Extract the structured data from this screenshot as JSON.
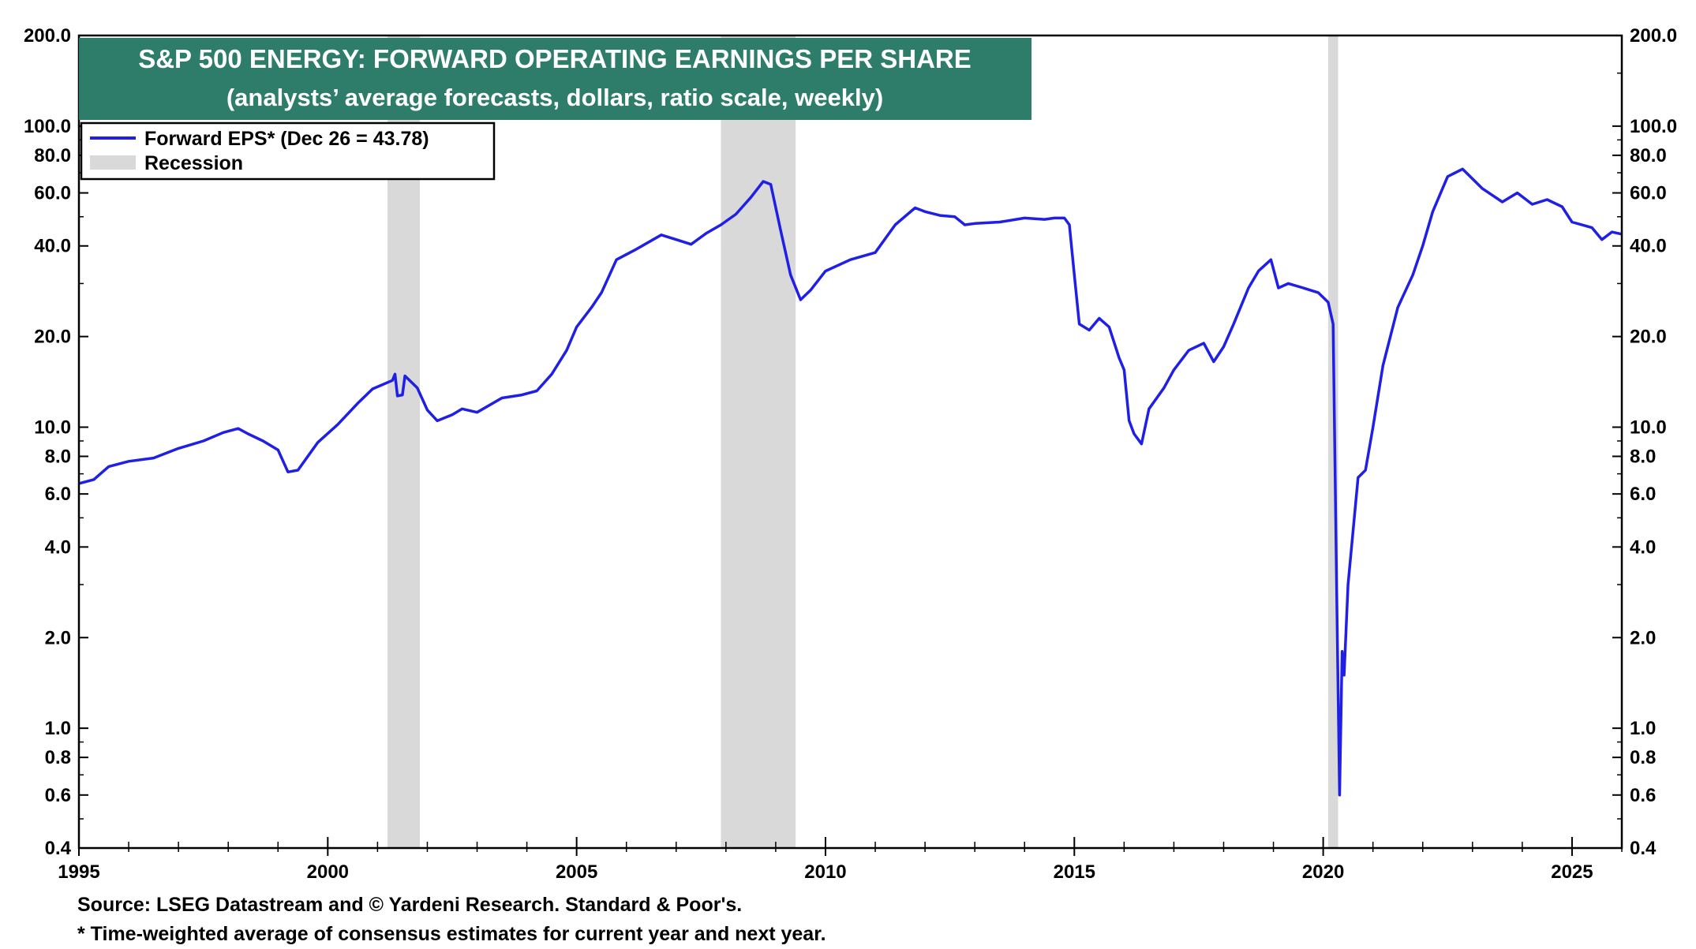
{
  "chart_data": {
    "type": "line",
    "title": "S&P 500 ENERGY: FORWARD OPERATING EARNINGS PER SHARE",
    "subtitle": "(analysts’ average forecasts, dollars, ratio scale, weekly)",
    "scale": "log",
    "xlim": [
      1995,
      2026
    ],
    "ylim": [
      0.4,
      200
    ],
    "x_ticks": [
      "1995",
      "2000",
      "2005",
      "2010",
      "2015",
      "2020",
      "2025"
    ],
    "y_ticks": [
      {
        "value": 200,
        "label": "200.0"
      },
      {
        "value": 100,
        "label": "100.0"
      },
      {
        "value": 80,
        "label": "80.0"
      },
      {
        "value": 60,
        "label": "60.0"
      },
      {
        "value": 40,
        "label": "40.0"
      },
      {
        "value": 20,
        "label": "20.0"
      },
      {
        "value": 10,
        "label": "10.0"
      },
      {
        "value": 8,
        "label": "8.0"
      },
      {
        "value": 6,
        "label": "6.0"
      },
      {
        "value": 4,
        "label": "4.0"
      },
      {
        "value": 2,
        "label": "2.0"
      },
      {
        "value": 1,
        "label": "1.0"
      },
      {
        "value": 0.8,
        "label": "0.8"
      },
      {
        "value": 0.6,
        "label": "0.6"
      },
      {
        "value": 0.4,
        "label": "0.4"
      }
    ],
    "legend": [
      {
        "label": "Forward EPS* (Dec 26 = 43.78)",
        "kind": "line",
        "color": "#1f1fe6"
      },
      {
        "label": "Recession",
        "kind": "band",
        "color": "#d9d9d9"
      }
    ],
    "recessions": [
      [
        2001.2,
        2001.85
      ],
      [
        2007.9,
        2009.4
      ],
      [
        2020.1,
        2020.3
      ]
    ],
    "series": [
      {
        "color": "#1f1fe6",
        "points": [
          [
            1995.0,
            6.5
          ],
          [
            1995.3,
            6.7
          ],
          [
            1995.6,
            7.4
          ],
          [
            1996.0,
            7.7
          ],
          [
            1996.5,
            7.9
          ],
          [
            1997.0,
            8.5
          ],
          [
            1997.5,
            9.0
          ],
          [
            1997.9,
            9.6
          ],
          [
            1998.2,
            9.9
          ],
          [
            1998.4,
            9.5
          ],
          [
            1998.7,
            9.0
          ],
          [
            1999.0,
            8.4
          ],
          [
            1999.2,
            7.1
          ],
          [
            1999.4,
            7.2
          ],
          [
            1999.8,
            8.9
          ],
          [
            2000.2,
            10.2
          ],
          [
            2000.6,
            12.0
          ],
          [
            2000.9,
            13.4
          ],
          [
            2001.3,
            14.3
          ],
          [
            2001.35,
            15.0
          ],
          [
            2001.4,
            12.7
          ],
          [
            2001.5,
            12.8
          ],
          [
            2001.55,
            14.8
          ],
          [
            2001.8,
            13.5
          ],
          [
            2002.0,
            11.4
          ],
          [
            2002.2,
            10.5
          ],
          [
            2002.5,
            11.0
          ],
          [
            2002.7,
            11.5
          ],
          [
            2003.0,
            11.2
          ],
          [
            2003.5,
            12.5
          ],
          [
            2003.9,
            12.8
          ],
          [
            2004.2,
            13.2
          ],
          [
            2004.5,
            15.0
          ],
          [
            2004.8,
            18.0
          ],
          [
            2005.0,
            21.5
          ],
          [
            2005.3,
            25.0
          ],
          [
            2005.5,
            28.0
          ],
          [
            2005.8,
            36.0
          ],
          [
            2006.2,
            39.0
          ],
          [
            2006.7,
            43.5
          ],
          [
            2007.0,
            42.0
          ],
          [
            2007.3,
            40.5
          ],
          [
            2007.6,
            44.0
          ],
          [
            2007.9,
            47.0
          ],
          [
            2008.2,
            51.0
          ],
          [
            2008.5,
            58.0
          ],
          [
            2008.75,
            65.5
          ],
          [
            2008.9,
            64.0
          ],
          [
            2009.1,
            45.0
          ],
          [
            2009.3,
            32.0
          ],
          [
            2009.5,
            26.5
          ],
          [
            2009.7,
            28.5
          ],
          [
            2010.0,
            33.0
          ],
          [
            2010.5,
            36.0
          ],
          [
            2011.0,
            38.0
          ],
          [
            2011.4,
            47.0
          ],
          [
            2011.8,
            53.5
          ],
          [
            2012.0,
            52.0
          ],
          [
            2012.3,
            50.5
          ],
          [
            2012.6,
            50.0
          ],
          [
            2012.8,
            47.0
          ],
          [
            2013.0,
            47.5
          ],
          [
            2013.5,
            48.0
          ],
          [
            2014.0,
            49.5
          ],
          [
            2014.4,
            49.0
          ],
          [
            2014.6,
            49.5
          ],
          [
            2014.8,
            49.5
          ],
          [
            2014.9,
            47.0
          ],
          [
            2015.0,
            32.0
          ],
          [
            2015.1,
            22.0
          ],
          [
            2015.3,
            21.0
          ],
          [
            2015.5,
            23.0
          ],
          [
            2015.7,
            21.5
          ],
          [
            2015.9,
            17.0
          ],
          [
            2016.0,
            15.5
          ],
          [
            2016.1,
            10.5
          ],
          [
            2016.2,
            9.5
          ],
          [
            2016.35,
            8.8
          ],
          [
            2016.5,
            11.5
          ],
          [
            2016.8,
            13.5
          ],
          [
            2017.0,
            15.5
          ],
          [
            2017.3,
            18.0
          ],
          [
            2017.6,
            19.0
          ],
          [
            2017.8,
            16.5
          ],
          [
            2018.0,
            18.5
          ],
          [
            2018.2,
            22.0
          ],
          [
            2018.5,
            29.0
          ],
          [
            2018.7,
            33.0
          ],
          [
            2018.95,
            36.0
          ],
          [
            2019.1,
            29.0
          ],
          [
            2019.3,
            30.0
          ],
          [
            2019.6,
            29.0
          ],
          [
            2019.9,
            28.0
          ],
          [
            2020.1,
            26.0
          ],
          [
            2020.2,
            22.0
          ],
          [
            2020.27,
            3.0
          ],
          [
            2020.33,
            0.6
          ],
          [
            2020.38,
            1.8
          ],
          [
            2020.42,
            1.5
          ],
          [
            2020.5,
            3.0
          ],
          [
            2020.7,
            6.8
          ],
          [
            2020.85,
            7.2
          ],
          [
            2021.0,
            10.0
          ],
          [
            2021.2,
            16.0
          ],
          [
            2021.5,
            25.0
          ],
          [
            2021.8,
            32.0
          ],
          [
            2022.0,
            40.0
          ],
          [
            2022.2,
            52.0
          ],
          [
            2022.5,
            68.0
          ],
          [
            2022.8,
            72.0
          ],
          [
            2023.2,
            62.0
          ],
          [
            2023.6,
            56.0
          ],
          [
            2023.9,
            60.0
          ],
          [
            2024.2,
            55.0
          ],
          [
            2024.5,
            57.0
          ],
          [
            2024.8,
            54.0
          ],
          [
            2025.0,
            48.0
          ],
          [
            2025.4,
            46.0
          ],
          [
            2025.6,
            42.0
          ],
          [
            2025.8,
            44.5
          ],
          [
            2026.0,
            43.78
          ]
        ]
      }
    ]
  },
  "footnotes": {
    "source": "Source: LSEG Datastream and © Yardeni Research. Standard & Poor's.",
    "note": "* Time-weighted average of consensus estimates for current year and next year."
  },
  "colors": {
    "title_bg": "#2e7d6b",
    "line": "#1f1fe6",
    "recession": "#d9d9d9"
  }
}
